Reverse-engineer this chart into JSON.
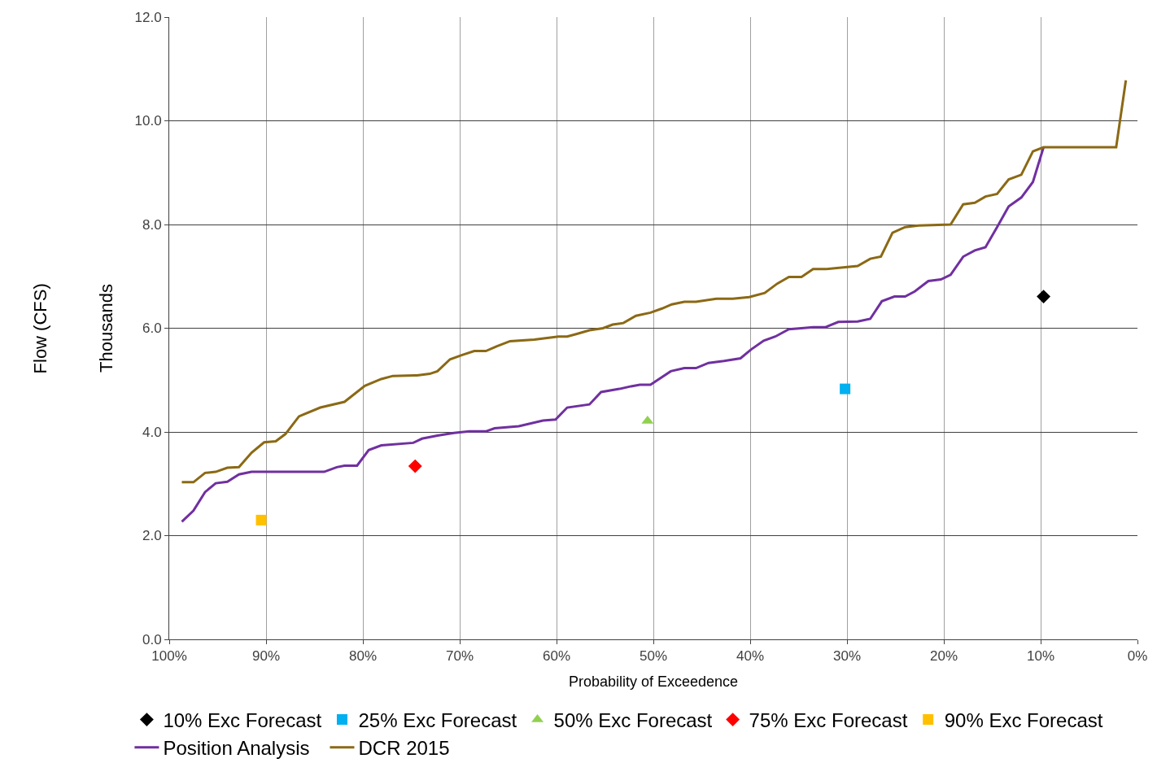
{
  "chart_data": {
    "type": "line",
    "xlabel": "Probability of Exceedence",
    "ylabel": "Thousands",
    "annotations": [
      "Flow (CFS)"
    ],
    "xlim": [
      100,
      0
    ],
    "xticks": [
      {
        "value": 100,
        "label": "100%"
      },
      {
        "value": 90,
        "label": "90%"
      },
      {
        "value": 80,
        "label": "80%"
      },
      {
        "value": 70,
        "label": "70%"
      },
      {
        "value": 60,
        "label": "60%"
      },
      {
        "value": 50,
        "label": "50%"
      },
      {
        "value": 40,
        "label": "40%"
      },
      {
        "value": 30,
        "label": "30%"
      },
      {
        "value": 20,
        "label": "20%"
      },
      {
        "value": 10,
        "label": "10%"
      },
      {
        "value": 0,
        "label": "0%"
      }
    ],
    "ylim": [
      0,
      12
    ],
    "yticks": [
      {
        "value": 0,
        "label": "0.0"
      },
      {
        "value": 2,
        "label": "2.0"
      },
      {
        "value": 4,
        "label": "4.0"
      },
      {
        "value": 6,
        "label": "6.0"
      },
      {
        "value": 8,
        "label": "8.0"
      },
      {
        "value": 10,
        "label": "10.0"
      },
      {
        "value": 12,
        "label": "12.0"
      }
    ],
    "grid": true,
    "legend": "bottom",
    "series": [
      {
        "name": "10% Exc Forecast",
        "type": "scatter",
        "marker": "diamond",
        "color": "#000000",
        "x": [
          9.7
        ],
        "values": [
          6.61
        ]
      },
      {
        "name": "25% Exc Forecast",
        "type": "scatter",
        "marker": "square",
        "color": "#00b0f0",
        "x": [
          30.2
        ],
        "values": [
          4.83
        ]
      },
      {
        "name": "50% Exc Forecast",
        "type": "scatter",
        "marker": "triangle",
        "color": "#92d050",
        "x": [
          50.6
        ],
        "values": [
          4.21
        ]
      },
      {
        "name": "75% Exc Forecast",
        "type": "scatter",
        "marker": "diamond",
        "color": "#ff0000",
        "x": [
          74.6
        ],
        "values": [
          3.34
        ]
      },
      {
        "name": "90% Exc Forecast",
        "type": "scatter",
        "marker": "square",
        "color": "#ffc000",
        "x": [
          90.5
        ],
        "values": [
          2.3
        ]
      },
      {
        "name": "Position Analysis",
        "color": "#7030a0",
        "x": [
          98.7,
          97.5,
          96.3,
          95.2,
          94.0,
          92.8,
          91.5,
          84.0,
          82.7,
          81.9,
          80.6,
          79.4,
          78.1,
          74.8,
          73.9,
          72.3,
          70.6,
          69.0,
          67.3,
          66.4,
          63.9,
          61.4,
          60.1,
          58.9,
          56.6,
          55.4,
          53.5,
          52.3,
          51.4,
          50.3,
          48.2,
          46.8,
          45.6,
          44.3,
          42.7,
          41.0,
          39.9,
          38.6,
          37.4,
          36.0,
          34.7,
          33.5,
          32.2,
          30.9,
          28.9,
          27.6,
          26.4,
          25.1,
          24.0,
          23.0,
          21.6,
          20.3,
          19.3,
          18.0,
          16.8,
          15.7,
          14.5,
          13.3,
          12.0,
          10.8,
          9.7
        ],
        "values": [
          2.27,
          2.48,
          2.84,
          3.01,
          3.04,
          3.18,
          3.23,
          3.23,
          3.32,
          3.35,
          3.35,
          3.65,
          3.74,
          3.79,
          3.87,
          3.93,
          3.98,
          4.01,
          4.01,
          4.07,
          4.11,
          4.22,
          4.24,
          4.47,
          4.53,
          4.77,
          4.83,
          4.88,
          4.91,
          4.91,
          5.17,
          5.23,
          5.23,
          5.33,
          5.37,
          5.42,
          5.59,
          5.76,
          5.84,
          5.98,
          6.0,
          6.02,
          6.02,
          6.12,
          6.13,
          6.18,
          6.52,
          6.61,
          6.61,
          6.71,
          6.91,
          6.94,
          7.03,
          7.38,
          7.5,
          7.56,
          7.95,
          8.35,
          8.52,
          8.82,
          9.49
        ]
      },
      {
        "name": "DCR 2015",
        "color": "#8b6914",
        "x": [
          98.7,
          97.5,
          96.3,
          95.2,
          94.0,
          92.8,
          91.5,
          90.2,
          89.0,
          88.0,
          86.6,
          84.4,
          81.9,
          79.8,
          78.1,
          76.9,
          74.4,
          73.1,
          72.3,
          71.0,
          69.8,
          68.5,
          67.3,
          66.2,
          64.8,
          62.3,
          59.8,
          58.9,
          57.9,
          56.6,
          55.2,
          54.2,
          53.1,
          51.8,
          50.3,
          49.1,
          48.1,
          46.8,
          45.6,
          43.5,
          41.8,
          40.1,
          38.5,
          37.2,
          36.0,
          34.7,
          33.5,
          32.2,
          28.9,
          27.6,
          26.5,
          25.3,
          24.0,
          22.6,
          19.3,
          18.0,
          16.8,
          15.7,
          14.5,
          13.3,
          12.0,
          10.8,
          9.7,
          2.2,
          1.2
        ],
        "values": [
          3.03,
          3.03,
          3.21,
          3.23,
          3.31,
          3.32,
          3.6,
          3.8,
          3.82,
          3.96,
          4.3,
          4.47,
          4.58,
          4.89,
          5.02,
          5.08,
          5.09,
          5.12,
          5.17,
          5.4,
          5.48,
          5.56,
          5.56,
          5.65,
          5.75,
          5.78,
          5.84,
          5.84,
          5.89,
          5.96,
          6.0,
          6.07,
          6.1,
          6.24,
          6.3,
          6.38,
          6.46,
          6.51,
          6.51,
          6.57,
          6.57,
          6.6,
          6.68,
          6.86,
          6.99,
          6.99,
          7.14,
          7.14,
          7.2,
          7.34,
          7.38,
          7.84,
          7.95,
          7.98,
          8.0,
          8.39,
          8.42,
          8.54,
          8.59,
          8.87,
          8.96,
          9.41,
          9.49,
          9.49,
          10.78
        ]
      }
    ]
  }
}
